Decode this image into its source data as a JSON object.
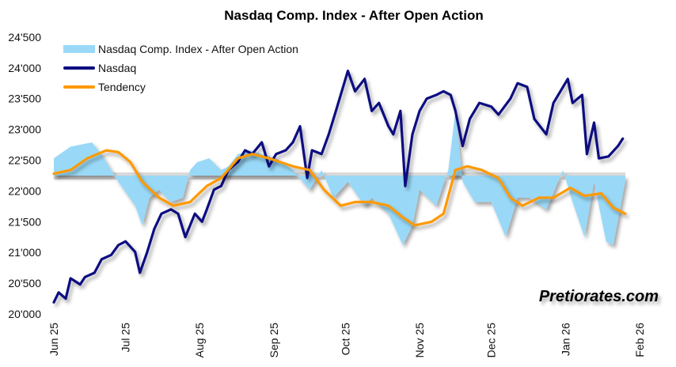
{
  "chart_data": {
    "type": "line",
    "title": "Nasdaq Comp. Index - After Open Action",
    "xlabel": "",
    "ylabel": "",
    "ylim": [
      20000,
      24500
    ],
    "y_ticks": [
      "20'000",
      "20'500",
      "21'000",
      "21'500",
      "22'000",
      "22'500",
      "23'000",
      "23'500",
      "24'000",
      "24'500"
    ],
    "y_tick_values": [
      20000,
      20500,
      21000,
      21500,
      22000,
      22500,
      23000,
      23500,
      24000,
      24500
    ],
    "x_unit": "days since Jun 1 2025",
    "x_ticks": [
      "Jun 25",
      "Jul 25",
      "Aug 25",
      "Sep 25",
      "Oct 25",
      "Nov 25",
      "Dec 25",
      "Jan 26",
      "Feb 26"
    ],
    "x_tick_values": [
      0,
      30,
      61,
      92,
      122,
      153,
      183,
      214,
      245
    ],
    "legend_position": "top-left",
    "area_baseline": 22250,
    "series": [
      {
        "name": "Nasdaq Comp. Index - After Open Action",
        "kind": "area",
        "color": "#99D9F7",
        "x": [
          0,
          7,
          16,
          21,
          27,
          34,
          37,
          40,
          44,
          49,
          54,
          57,
          60,
          65,
          70,
          73,
          77,
          82,
          87,
          93,
          100,
          107,
          112,
          117,
          123,
          130,
          133,
          140,
          146,
          150,
          153,
          160,
          165,
          168,
          171,
          176,
          183,
          189,
          194,
          199,
          206,
          213,
          217,
          222,
          226,
          231,
          234,
          239
        ],
        "values": [
          22530,
          22720,
          22790,
          22530,
          22150,
          21760,
          21440,
          21890,
          22020,
          21820,
          21890,
          22340,
          22470,
          22530,
          22340,
          22400,
          22600,
          22660,
          22600,
          22530,
          22340,
          22020,
          22340,
          21890,
          22150,
          21760,
          21890,
          21630,
          21120,
          21440,
          22020,
          21760,
          22340,
          23300,
          22150,
          21820,
          21820,
          21250,
          21890,
          21890,
          21700,
          22340,
          21820,
          21250,
          22150,
          21180,
          21120,
          22150
        ]
      },
      {
        "name": "Nasdaq",
        "kind": "line",
        "color": "#0A0A80",
        "x": [
          0,
          2,
          5,
          7,
          11,
          13,
          17,
          20,
          24,
          27,
          30,
          34,
          36,
          39,
          42,
          45,
          49,
          52,
          55,
          59,
          62,
          64,
          67,
          70,
          73,
          77,
          80,
          83,
          87,
          90,
          93,
          97,
          100,
          103,
          106,
          108,
          112,
          115,
          118,
          121,
          123,
          126,
          130,
          133,
          136,
          140,
          142,
          145,
          147,
          150,
          153,
          156,
          160,
          163,
          166,
          168,
          171,
          174,
          178,
          183,
          186,
          191,
          194,
          198,
          201,
          206,
          209,
          213,
          215,
          217,
          221,
          223,
          226,
          228,
          232,
          236,
          238
        ],
        "values": [
          20190,
          20350,
          20250,
          20580,
          20480,
          20600,
          20670,
          20890,
          20960,
          21120,
          21180,
          21010,
          20670,
          21000,
          21380,
          21630,
          21700,
          21630,
          21250,
          21630,
          21500,
          21700,
          22020,
          22080,
          22340,
          22470,
          22660,
          22600,
          22790,
          22400,
          22600,
          22660,
          22790,
          23050,
          22210,
          22660,
          22600,
          22920,
          23300,
          23690,
          23950,
          23620,
          23820,
          23300,
          23430,
          23050,
          22920,
          23300,
          22080,
          22920,
          23300,
          23500,
          23560,
          23620,
          23560,
          23300,
          22730,
          23170,
          23430,
          23370,
          23240,
          23500,
          23750,
          23690,
          23170,
          22920,
          23430,
          23690,
          23820,
          23430,
          23560,
          22600,
          23110,
          22530,
          22560,
          22730,
          22850
        ]
      },
      {
        "name": "Tendency",
        "kind": "line",
        "color": "#FF9900",
        "x": [
          0,
          7,
          14,
          22,
          27,
          32,
          37,
          44,
          50,
          57,
          64,
          70,
          77,
          83,
          90,
          100,
          107,
          113,
          120,
          126,
          133,
          140,
          146,
          151,
          158,
          163,
          168,
          173,
          179,
          186,
          191,
          196,
          203,
          209,
          216,
          222,
          229,
          234,
          239
        ],
        "values": [
          22280,
          22340,
          22530,
          22660,
          22630,
          22470,
          22150,
          21890,
          21760,
          21820,
          22080,
          22210,
          22530,
          22600,
          22530,
          22400,
          22340,
          22020,
          21760,
          21820,
          21820,
          21760,
          21570,
          21440,
          21500,
          21630,
          22340,
          22400,
          22340,
          22210,
          21890,
          21760,
          21890,
          21890,
          22050,
          21920,
          21960,
          21730,
          21630
        ]
      }
    ]
  },
  "watermark": "Pretiorates.com"
}
